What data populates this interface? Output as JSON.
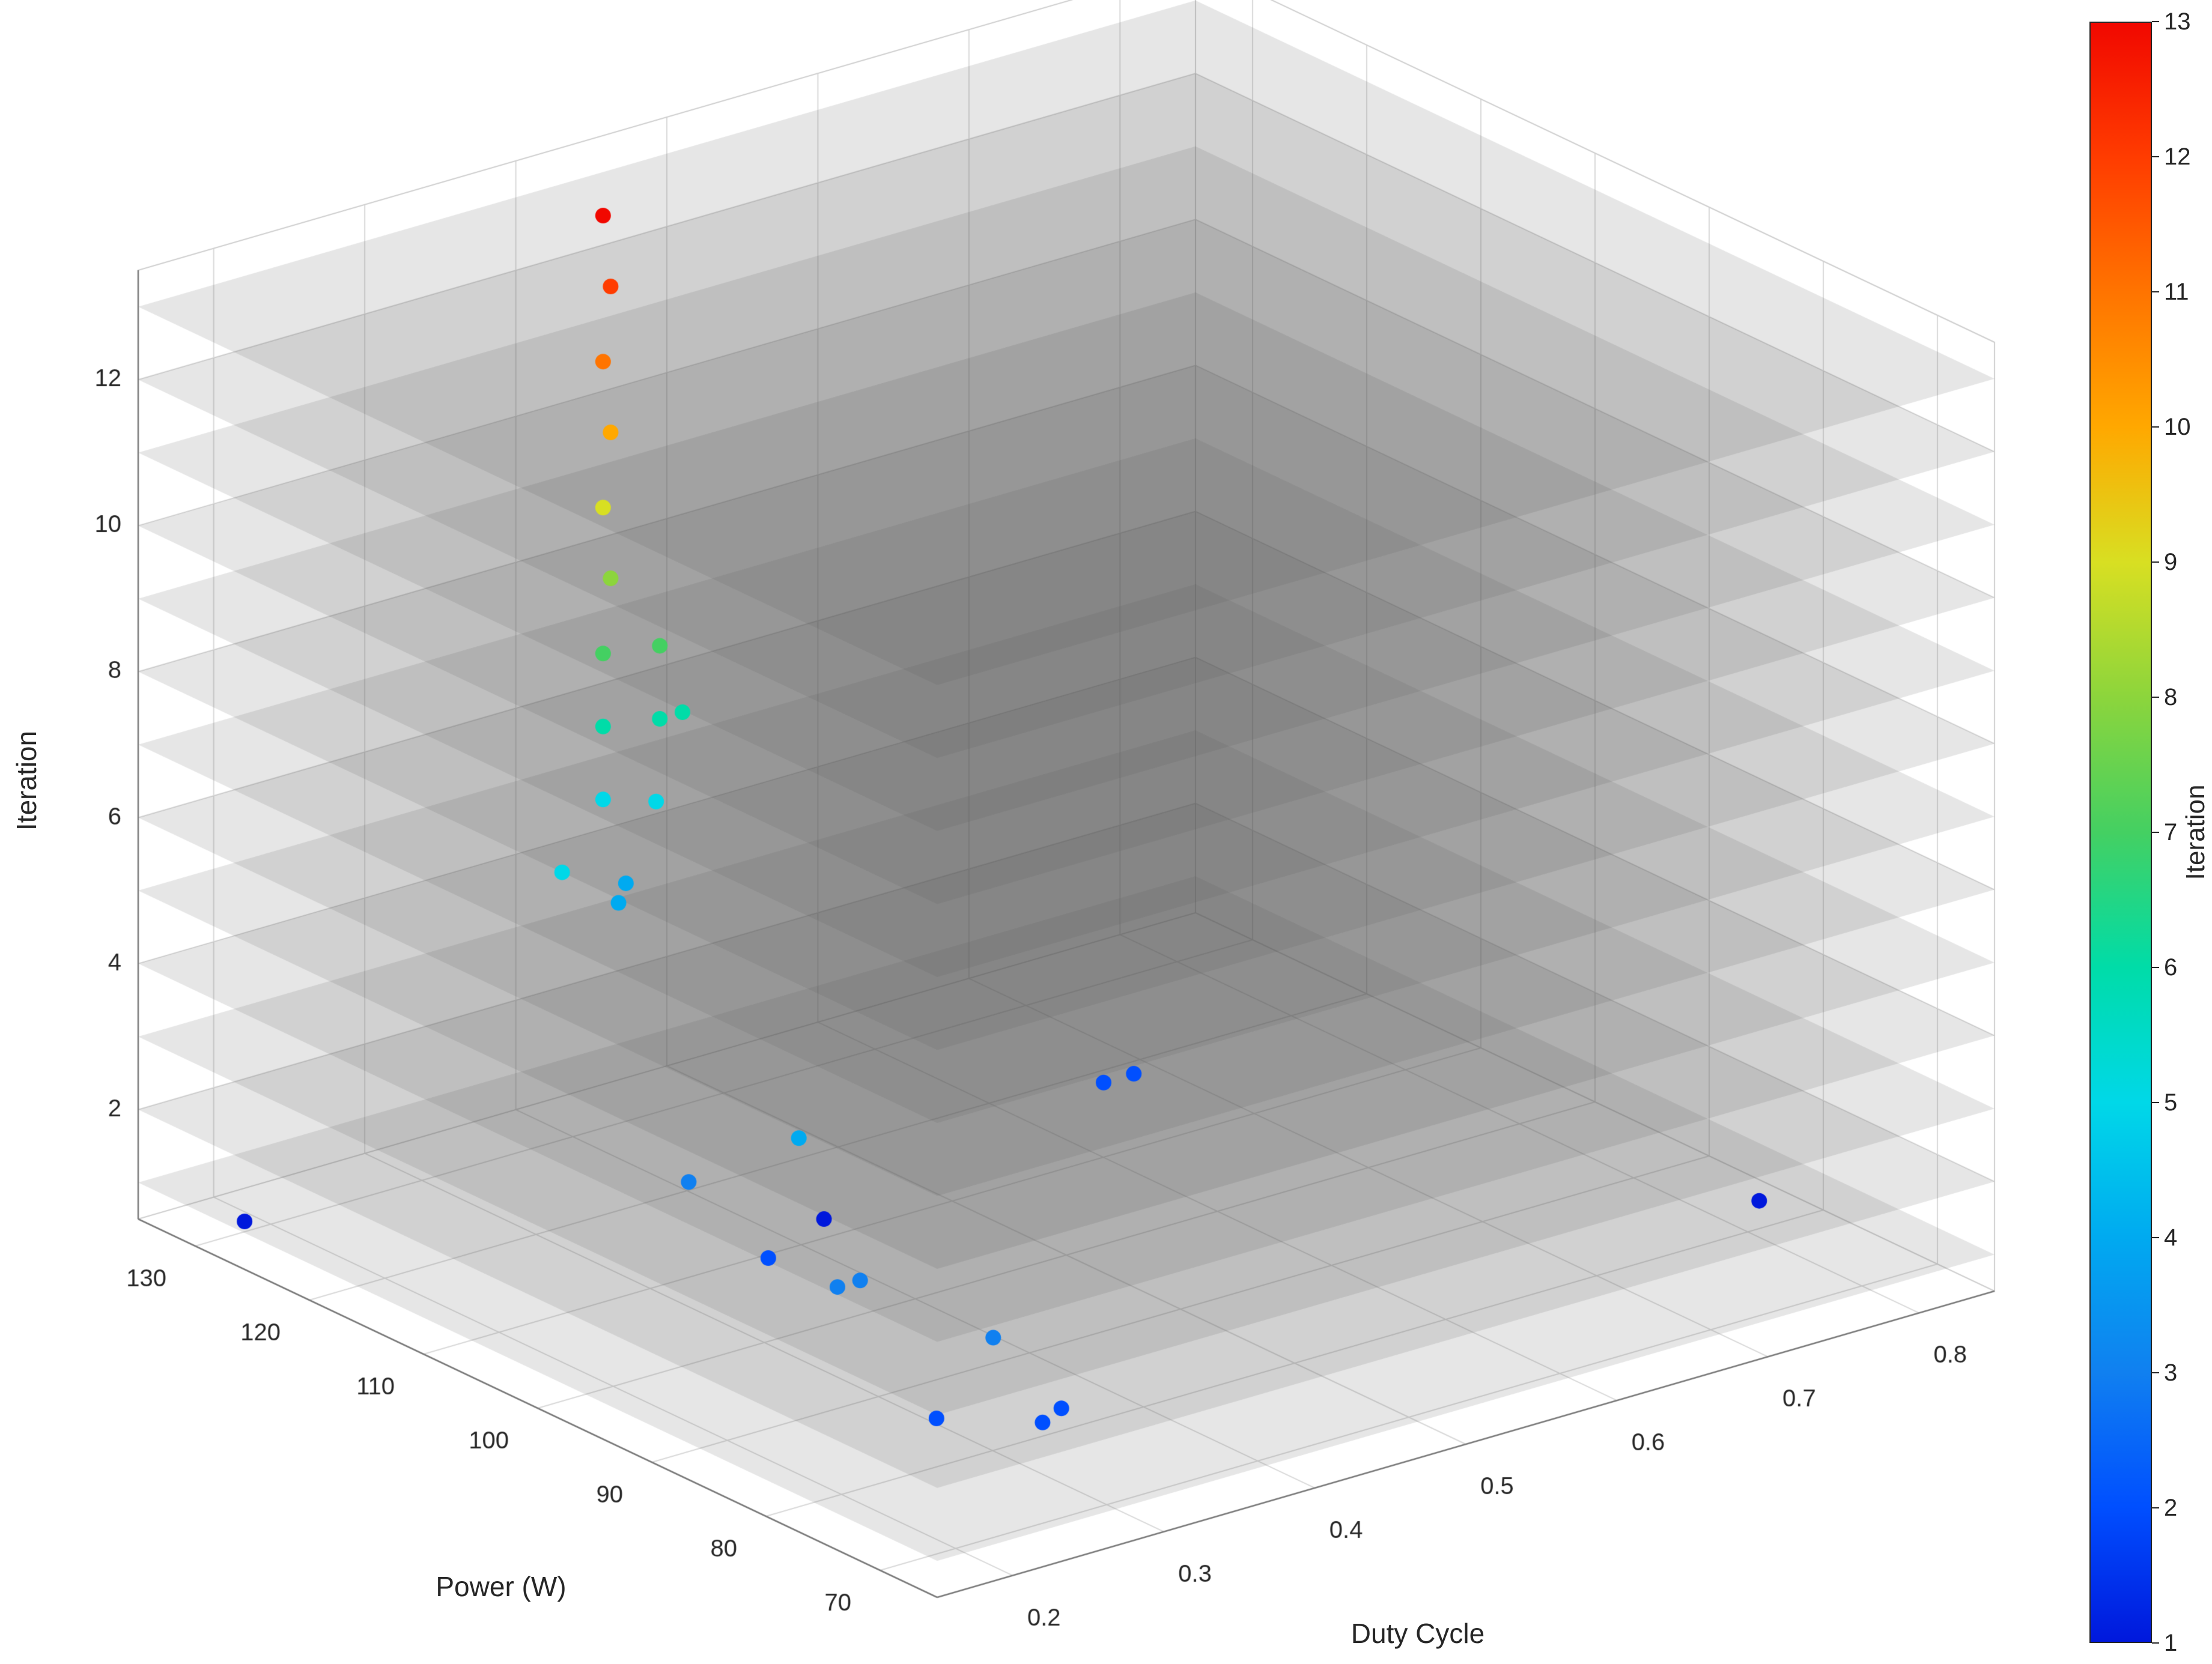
{
  "figure": {
    "background": "#FFFFFF"
  },
  "chart_data": {
    "type": "scatter",
    "projection": "3d",
    "title": "",
    "xlabel": "Duty Cycle",
    "ylabel": "Power (W)",
    "zlabel": "Iteration",
    "x_ticks": [
      0.2,
      0.3,
      0.4,
      0.5,
      0.6,
      0.7,
      0.8
    ],
    "y_ticks": [
      70,
      80,
      90,
      100,
      110,
      120,
      130
    ],
    "z_ticks": [
      2,
      4,
      6,
      8,
      10,
      12
    ],
    "x_range": [
      0.15,
      0.85
    ],
    "y_range": [
      65,
      135
    ],
    "z_range": [
      0.5,
      13.5
    ],
    "grid_on": true,
    "grid_color": "#D9D9D9",
    "axis_color": "#7A7A7A",
    "tick_text_color": "#262626",
    "iteration_planes": [
      1,
      2,
      3,
      4,
      5,
      6,
      7,
      8,
      9,
      10,
      11,
      12,
      13
    ],
    "plane_color": "#5A5A5A",
    "plane_opacity": 0.15,
    "points": [
      {
        "duty": 0.16,
        "power": 127,
        "iteration": 1
      },
      {
        "duty": 0.8,
        "power": 79,
        "iteration": 1
      },
      {
        "duty": 0.4,
        "power": 108,
        "iteration": 1
      },
      {
        "duty": 0.57,
        "power": 106,
        "iteration": 2
      },
      {
        "duty": 0.59,
        "power": 106,
        "iteration": 2
      },
      {
        "duty": 0.28,
        "power": 97,
        "iteration": 2
      },
      {
        "duty": 0.25,
        "power": 69,
        "iteration": 2
      },
      {
        "duty": 0.21,
        "power": 73,
        "iteration": 2
      },
      {
        "duty": 0.27,
        "power": 70,
        "iteration": 2
      },
      {
        "duty": 0.25,
        "power": 100,
        "iteration": 3
      },
      {
        "duty": 0.22,
        "power": 83,
        "iteration": 3
      },
      {
        "duty": 0.235,
        "power": 83,
        "iteration": 3
      },
      {
        "duty": 0.24,
        "power": 72,
        "iteration": 3
      },
      {
        "duty": 0.27,
        "power": 93,
        "iteration": 4
      },
      {
        "duty": 0.42,
        "power": 128,
        "iteration": 4
      },
      {
        "duty": 0.4,
        "power": 126,
        "iteration": 4
      },
      {
        "duty": 0.42,
        "power": 130,
        "iteration": 5
      },
      {
        "duty": 0.34,
        "power": 123,
        "iteration": 5
      },
      {
        "duty": 0.44,
        "power": 128,
        "iteration": 5
      },
      {
        "duty": 0.42,
        "power": 130,
        "iteration": 6
      },
      {
        "duty": 0.45,
        "power": 129,
        "iteration": 6
      },
      {
        "duty": 0.465,
        "power": 129,
        "iteration": 6
      },
      {
        "duty": 0.42,
        "power": 130,
        "iteration": 7
      },
      {
        "duty": 0.45,
        "power": 129,
        "iteration": 7
      },
      {
        "duty": 0.425,
        "power": 130,
        "iteration": 8
      },
      {
        "duty": 0.42,
        "power": 130,
        "iteration": 9
      },
      {
        "duty": 0.425,
        "power": 130,
        "iteration": 10
      },
      {
        "duty": 0.42,
        "power": 130,
        "iteration": 11
      },
      {
        "duty": 0.425,
        "power": 130,
        "iteration": 12
      },
      {
        "duty": 0.42,
        "power": 130,
        "iteration": 13
      }
    ],
    "colorbar": {
      "label": "Iteration",
      "min": 1,
      "max": 13,
      "ticks": [
        1,
        2,
        3,
        4,
        5,
        6,
        7,
        8,
        9,
        10,
        11,
        12,
        13
      ],
      "colors": [
        "#0018DC",
        "#004FFF",
        "#1080F0",
        "#00AAF0",
        "#00D8E8",
        "#00DCA8",
        "#44D062",
        "#8CD53C",
        "#D8DF22",
        "#FFA800",
        "#FF7400",
        "#FF3C00",
        "#F10800"
      ]
    }
  }
}
